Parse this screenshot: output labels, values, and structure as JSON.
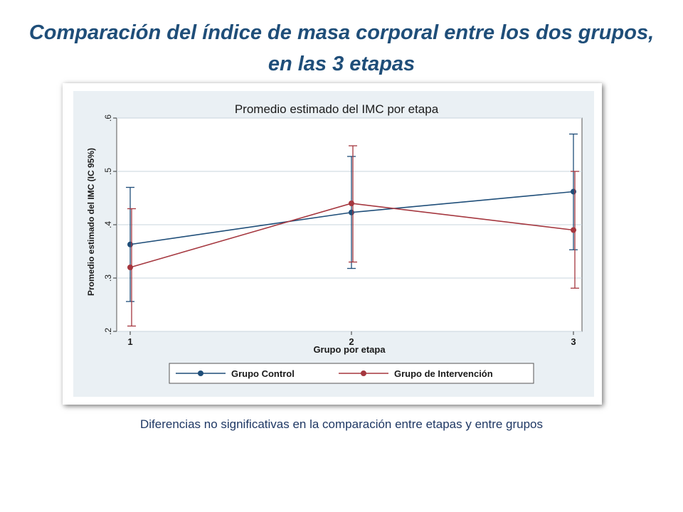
{
  "slide": {
    "title": "Comparación del índice de masa corporal entre los dos grupos, en las 3 etapas",
    "caption": "Diferencias no significativas en la comparación entre etapas y entre grupos"
  },
  "chart_data": {
    "type": "line",
    "title": "Promedio estimado del IMC por etapa",
    "xlabel": "Grupo por etapa",
    "ylabel": "Promedio estimado del IMC (IC 95%)",
    "x": [
      1,
      2,
      3
    ],
    "x_tick_labels": [
      "1",
      "2",
      "3"
    ],
    "y_ticks": [
      0.2,
      0.3,
      0.4,
      0.5,
      0.6
    ],
    "y_tick_labels": [
      ".2",
      ".3",
      ".4",
      ".5",
      ".6"
    ],
    "ylim": [
      0.2,
      0.6
    ],
    "xlim": [
      1,
      3
    ],
    "grid": true,
    "legend_position": "bottom",
    "series": [
      {
        "name": "Grupo Control",
        "color": "#1f4e79",
        "values": [
          0.363,
          0.423,
          0.462
        ],
        "ci_low": [
          0.256,
          0.318,
          0.353
        ],
        "ci_high": [
          0.47,
          0.528,
          0.57
        ]
      },
      {
        "name": "Grupo de Intervención",
        "color": "#a5373f",
        "values": [
          0.32,
          0.44,
          0.39
        ],
        "ci_low": [
          0.21,
          0.33,
          0.281
        ],
        "ci_high": [
          0.43,
          0.548,
          0.5
        ]
      }
    ]
  }
}
